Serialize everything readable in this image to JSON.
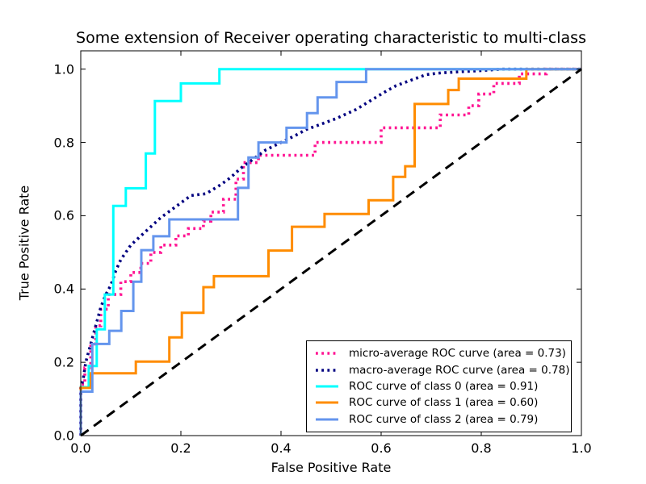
{
  "chart_data": {
    "type": "line",
    "subtype": "roc-step-curves",
    "title": "Some extension of Receiver operating characteristic to multi-class",
    "xlabel": "False Positive Rate",
    "ylabel": "True Positive Rate",
    "xlim": [
      0.0,
      1.0
    ],
    "ylim": [
      0.0,
      1.05
    ],
    "grid": false,
    "legend_position": "lower right",
    "x_tick_values": [
      0.0,
      0.2,
      0.4,
      0.6,
      0.8,
      1.0
    ],
    "x_tick_labels": [
      "0.0",
      "0.2",
      "0.4",
      "0.6",
      "0.8",
      "1.0"
    ],
    "y_tick_values": [
      0.0,
      0.2,
      0.4,
      0.6,
      0.8,
      1.0
    ],
    "y_tick_labels": [
      "0.0",
      "0.2",
      "0.4",
      "0.6",
      "0.8",
      "1.0"
    ],
    "series": [
      {
        "name": "micro-average ROC curve (area = 0.73)",
        "area": 0.73,
        "color": "#FF1493",
        "linestyle": "dotted",
        "linewidth": 3.6,
        "points": [
          [
            0,
            0
          ],
          [
            0,
            0.14
          ],
          [
            0.008,
            0.14
          ],
          [
            0.008,
            0.185
          ],
          [
            0.02,
            0.185
          ],
          [
            0.02,
            0.25
          ],
          [
            0.03,
            0.25
          ],
          [
            0.03,
            0.3
          ],
          [
            0.04,
            0.3
          ],
          [
            0.04,
            0.345
          ],
          [
            0.055,
            0.345
          ],
          [
            0.055,
            0.385
          ],
          [
            0.08,
            0.385
          ],
          [
            0.08,
            0.42
          ],
          [
            0.1,
            0.42
          ],
          [
            0.1,
            0.445
          ],
          [
            0.12,
            0.445
          ],
          [
            0.12,
            0.47
          ],
          [
            0.14,
            0.47
          ],
          [
            0.14,
            0.5
          ],
          [
            0.16,
            0.5
          ],
          [
            0.16,
            0.52
          ],
          [
            0.19,
            0.52
          ],
          [
            0.19,
            0.545
          ],
          [
            0.215,
            0.545
          ],
          [
            0.215,
            0.565
          ],
          [
            0.245,
            0.565
          ],
          [
            0.245,
            0.585
          ],
          [
            0.26,
            0.585
          ],
          [
            0.26,
            0.61
          ],
          [
            0.285,
            0.61
          ],
          [
            0.285,
            0.645
          ],
          [
            0.31,
            0.645
          ],
          [
            0.31,
            0.7
          ],
          [
            0.325,
            0.7
          ],
          [
            0.325,
            0.745
          ],
          [
            0.355,
            0.745
          ],
          [
            0.355,
            0.765
          ],
          [
            0.468,
            0.765
          ],
          [
            0.468,
            0.8
          ],
          [
            0.6,
            0.8
          ],
          [
            0.6,
            0.84
          ],
          [
            0.718,
            0.84
          ],
          [
            0.718,
            0.875
          ],
          [
            0.775,
            0.875
          ],
          [
            0.775,
            0.9
          ],
          [
            0.795,
            0.9
          ],
          [
            0.795,
            0.932
          ],
          [
            0.825,
            0.932
          ],
          [
            0.825,
            0.961
          ],
          [
            0.876,
            0.961
          ],
          [
            0.876,
            0.987
          ],
          [
            0.93,
            0.987
          ],
          [
            0.93,
            1.0
          ],
          [
            1,
            1
          ]
        ]
      },
      {
        "name": "macro-average ROC curve (area = 0.78)",
        "area": 0.78,
        "color": "#000080",
        "linestyle": "dotted",
        "linewidth": 3.6,
        "points": [
          [
            0,
            0
          ],
          [
            0,
            0.13
          ],
          [
            0.005,
            0.155
          ],
          [
            0.01,
            0.2
          ],
          [
            0.02,
            0.25
          ],
          [
            0.03,
            0.3
          ],
          [
            0.04,
            0.35
          ],
          [
            0.05,
            0.385
          ],
          [
            0.06,
            0.41
          ],
          [
            0.07,
            0.45
          ],
          [
            0.08,
            0.48
          ],
          [
            0.09,
            0.5
          ],
          [
            0.1,
            0.52
          ],
          [
            0.12,
            0.545
          ],
          [
            0.14,
            0.57
          ],
          [
            0.16,
            0.595
          ],
          [
            0.18,
            0.615
          ],
          [
            0.2,
            0.635
          ],
          [
            0.22,
            0.655
          ],
          [
            0.25,
            0.66
          ],
          [
            0.28,
            0.685
          ],
          [
            0.3,
            0.705
          ],
          [
            0.32,
            0.73
          ],
          [
            0.35,
            0.76
          ],
          [
            0.37,
            0.78
          ],
          [
            0.4,
            0.8
          ],
          [
            0.43,
            0.82
          ],
          [
            0.45,
            0.835
          ],
          [
            0.48,
            0.85
          ],
          [
            0.51,
            0.865
          ],
          [
            0.55,
            0.89
          ],
          [
            0.58,
            0.915
          ],
          [
            0.61,
            0.94
          ],
          [
            0.63,
            0.955
          ],
          [
            0.65,
            0.965
          ],
          [
            0.67,
            0.975
          ],
          [
            0.69,
            0.985
          ],
          [
            0.72,
            0.99
          ],
          [
            0.76,
            0.993
          ],
          [
            0.8,
            0.996
          ],
          [
            0.84,
            1.0
          ],
          [
            1,
            1
          ]
        ]
      },
      {
        "name": "ROC curve of class 0 (area = 0.91)",
        "area": 0.91,
        "color": "#00FFFF",
        "linestyle": "solid",
        "linewidth": 3,
        "points": [
          [
            0,
            0
          ],
          [
            0,
            0.132
          ],
          [
            0.016,
            0.132
          ],
          [
            0.016,
            0.19
          ],
          [
            0.032,
            0.19
          ],
          [
            0.032,
            0.29
          ],
          [
            0.048,
            0.29
          ],
          [
            0.048,
            0.385
          ],
          [
            0.065,
            0.385
          ],
          [
            0.065,
            0.627
          ],
          [
            0.09,
            0.627
          ],
          [
            0.09,
            0.675
          ],
          [
            0.13,
            0.675
          ],
          [
            0.13,
            0.77
          ],
          [
            0.148,
            0.77
          ],
          [
            0.148,
            0.913
          ],
          [
            0.2,
            0.913
          ],
          [
            0.2,
            0.961
          ],
          [
            0.277,
            0.961
          ],
          [
            0.277,
            1.0
          ],
          [
            1,
            1
          ]
        ]
      },
      {
        "name": "ROC curve of class 1 (area = 0.60)",
        "area": 0.6,
        "color": "#FF8C00",
        "linestyle": "solid",
        "linewidth": 3,
        "points": [
          [
            0,
            0
          ],
          [
            0,
            0.13
          ],
          [
            0.02,
            0.13
          ],
          [
            0.02,
            0.17
          ],
          [
            0.11,
            0.17
          ],
          [
            0.11,
            0.202
          ],
          [
            0.177,
            0.202
          ],
          [
            0.177,
            0.268
          ],
          [
            0.202,
            0.268
          ],
          [
            0.202,
            0.335
          ],
          [
            0.245,
            0.335
          ],
          [
            0.245,
            0.405
          ],
          [
            0.266,
            0.405
          ],
          [
            0.266,
            0.435
          ],
          [
            0.375,
            0.435
          ],
          [
            0.375,
            0.505
          ],
          [
            0.422,
            0.505
          ],
          [
            0.422,
            0.57
          ],
          [
            0.487,
            0.57
          ],
          [
            0.487,
            0.605
          ],
          [
            0.575,
            0.605
          ],
          [
            0.575,
            0.642
          ],
          [
            0.624,
            0.642
          ],
          [
            0.624,
            0.706
          ],
          [
            0.648,
            0.706
          ],
          [
            0.648,
            0.735
          ],
          [
            0.667,
            0.735
          ],
          [
            0.667,
            0.905
          ],
          [
            0.734,
            0.905
          ],
          [
            0.734,
            0.943
          ],
          [
            0.755,
            0.943
          ],
          [
            0.755,
            0.974
          ],
          [
            0.89,
            0.974
          ],
          [
            0.89,
            1.0
          ],
          [
            1,
            1
          ]
        ]
      },
      {
        "name": "ROC curve of class 2 (area = 0.79)",
        "area": 0.79,
        "color": "#6495ED",
        "linestyle": "solid",
        "linewidth": 3,
        "points": [
          [
            0,
            0
          ],
          [
            0,
            0.12
          ],
          [
            0.023,
            0.12
          ],
          [
            0.023,
            0.25
          ],
          [
            0.057,
            0.25
          ],
          [
            0.057,
            0.286
          ],
          [
            0.081,
            0.286
          ],
          [
            0.081,
            0.34
          ],
          [
            0.105,
            0.34
          ],
          [
            0.105,
            0.42
          ],
          [
            0.121,
            0.42
          ],
          [
            0.121,
            0.506
          ],
          [
            0.145,
            0.506
          ],
          [
            0.145,
            0.544
          ],
          [
            0.177,
            0.544
          ],
          [
            0.177,
            0.59
          ],
          [
            0.314,
            0.59
          ],
          [
            0.314,
            0.676
          ],
          [
            0.335,
            0.676
          ],
          [
            0.335,
            0.759
          ],
          [
            0.355,
            0.759
          ],
          [
            0.355,
            0.8
          ],
          [
            0.411,
            0.8
          ],
          [
            0.411,
            0.84
          ],
          [
            0.452,
            0.84
          ],
          [
            0.452,
            0.88
          ],
          [
            0.473,
            0.88
          ],
          [
            0.473,
            0.923
          ],
          [
            0.511,
            0.923
          ],
          [
            0.511,
            0.965
          ],
          [
            0.57,
            0.965
          ],
          [
            0.57,
            1.0
          ],
          [
            1,
            1
          ]
        ]
      }
    ],
    "reference_line": {
      "name": "chance diagonal",
      "color": "#000000",
      "linestyle": "dashed",
      "linewidth": 3,
      "points": [
        [
          0,
          0
        ],
        [
          1,
          1
        ]
      ]
    }
  }
}
